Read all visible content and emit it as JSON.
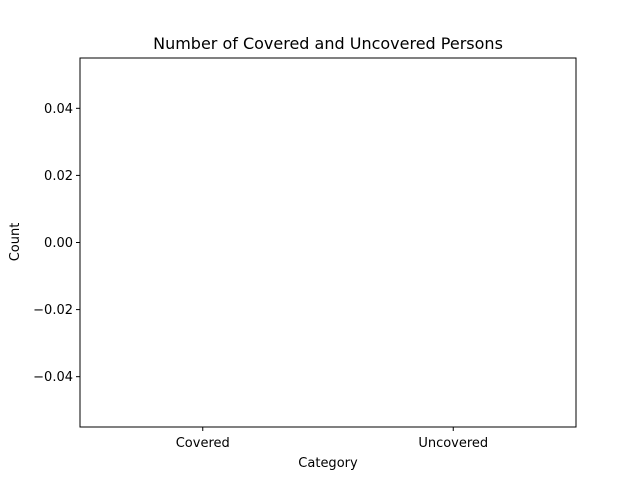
{
  "chart_data": {
    "type": "bar",
    "title": "Number of Covered and Uncovered Persons",
    "xlabel": "Category",
    "ylabel": "Count",
    "categories": [
      "Covered",
      "Uncovered"
    ],
    "values": [
      0,
      0
    ],
    "ylim": [
      -0.055,
      0.055
    ],
    "yticks": [
      0.04,
      0.02,
      0.0,
      -0.02,
      -0.04
    ],
    "ytick_labels": [
      "0.04",
      "0.02",
      "0.00",
      "−0.02",
      "−0.04"
    ],
    "grid": false,
    "legend": "none",
    "colors": {
      "bar": "#1f77b4",
      "axes": "#000000",
      "background": "#ffffff"
    }
  }
}
